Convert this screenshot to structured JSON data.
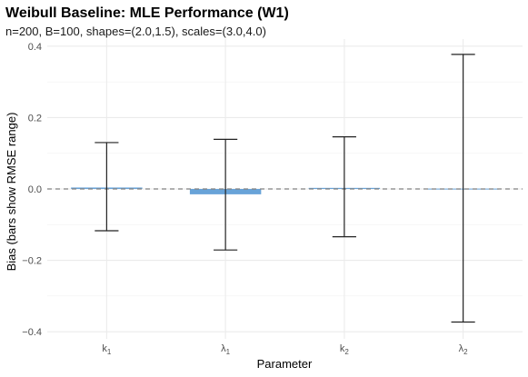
{
  "chart_data": {
    "type": "bar",
    "title": "Weibull Baseline: MLE Performance (W1)",
    "subtitle": "n=200, B=100, shapes=(2.0,1.5), scales=(3.0,4.0)",
    "xlabel": "Parameter",
    "ylabel": "Bias (bars show RMSE range)",
    "categories": [
      {
        "base": "k",
        "sub": "1"
      },
      {
        "base": "λ",
        "sub": "1"
      },
      {
        "base": "k",
        "sub": "2"
      },
      {
        "base": "λ",
        "sub": "2"
      }
    ],
    "values": [
      0.004,
      -0.015,
      0.003,
      0.001
    ],
    "error_low": [
      -0.117,
      -0.171,
      -0.134,
      -0.373
    ],
    "error_high": [
      0.13,
      0.139,
      0.146,
      0.377
    ],
    "ylim": [
      -0.42,
      0.42
    ],
    "yticks": [
      -0.4,
      -0.2,
      0.0,
      0.2,
      0.4
    ],
    "reference_line": 0,
    "grid": true,
    "bar_color": "#5b9bd5",
    "errorbar_color": "#222222",
    "refline_color": "#808080"
  }
}
